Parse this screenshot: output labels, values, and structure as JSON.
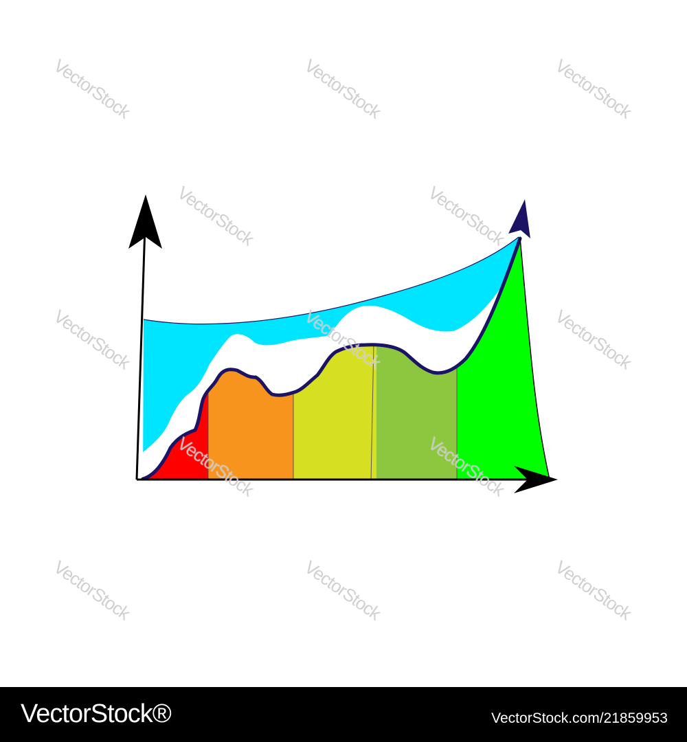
{
  "chart_data": {
    "type": "area",
    "title": "",
    "xlabel": "",
    "ylabel": "",
    "grid": false,
    "legend": "none",
    "segment_colors": [
      "#ff0000",
      "#f7941e",
      "#d7df23",
      "#8dc63f",
      "#00ff00"
    ],
    "band_colors": {
      "upper": "#00e5ff",
      "middle": "#ffffff",
      "outline": "#1b1464"
    },
    "axis_color": "#000000"
  },
  "watermark": {
    "text": "VectorStock"
  },
  "footer": {
    "brand": "VectorStock®",
    "image_id": "VectorStock.com/21859953"
  }
}
